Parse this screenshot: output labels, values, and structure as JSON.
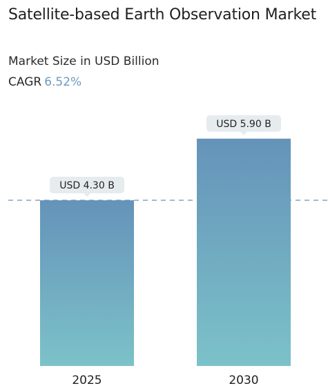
{
  "header": {
    "title": "Satellite-based Earth Observation Market",
    "subtitle": "Market Size in USD Billion",
    "cagr_label": "CAGR",
    "cagr_value": "6.52%"
  },
  "colors": {
    "bar_top": "#6593b9",
    "bar_bottom": "#7cc2c9",
    "label_bg": "#e6ecee",
    "cagr_accent": "#6a9bc0",
    "dashed_line": "#7ea3c4"
  },
  "chart_data": {
    "type": "bar",
    "categories": [
      "2025",
      "2030"
    ],
    "values": [
      4.3,
      5.9
    ],
    "data_labels": [
      "USD 4.30 B",
      "USD 5.90 B"
    ],
    "title": "Satellite-based Earth Observation Market",
    "subtitle": "Market Size in USD Billion",
    "reference_line": 4.3,
    "grid": false,
    "legend": "none"
  }
}
